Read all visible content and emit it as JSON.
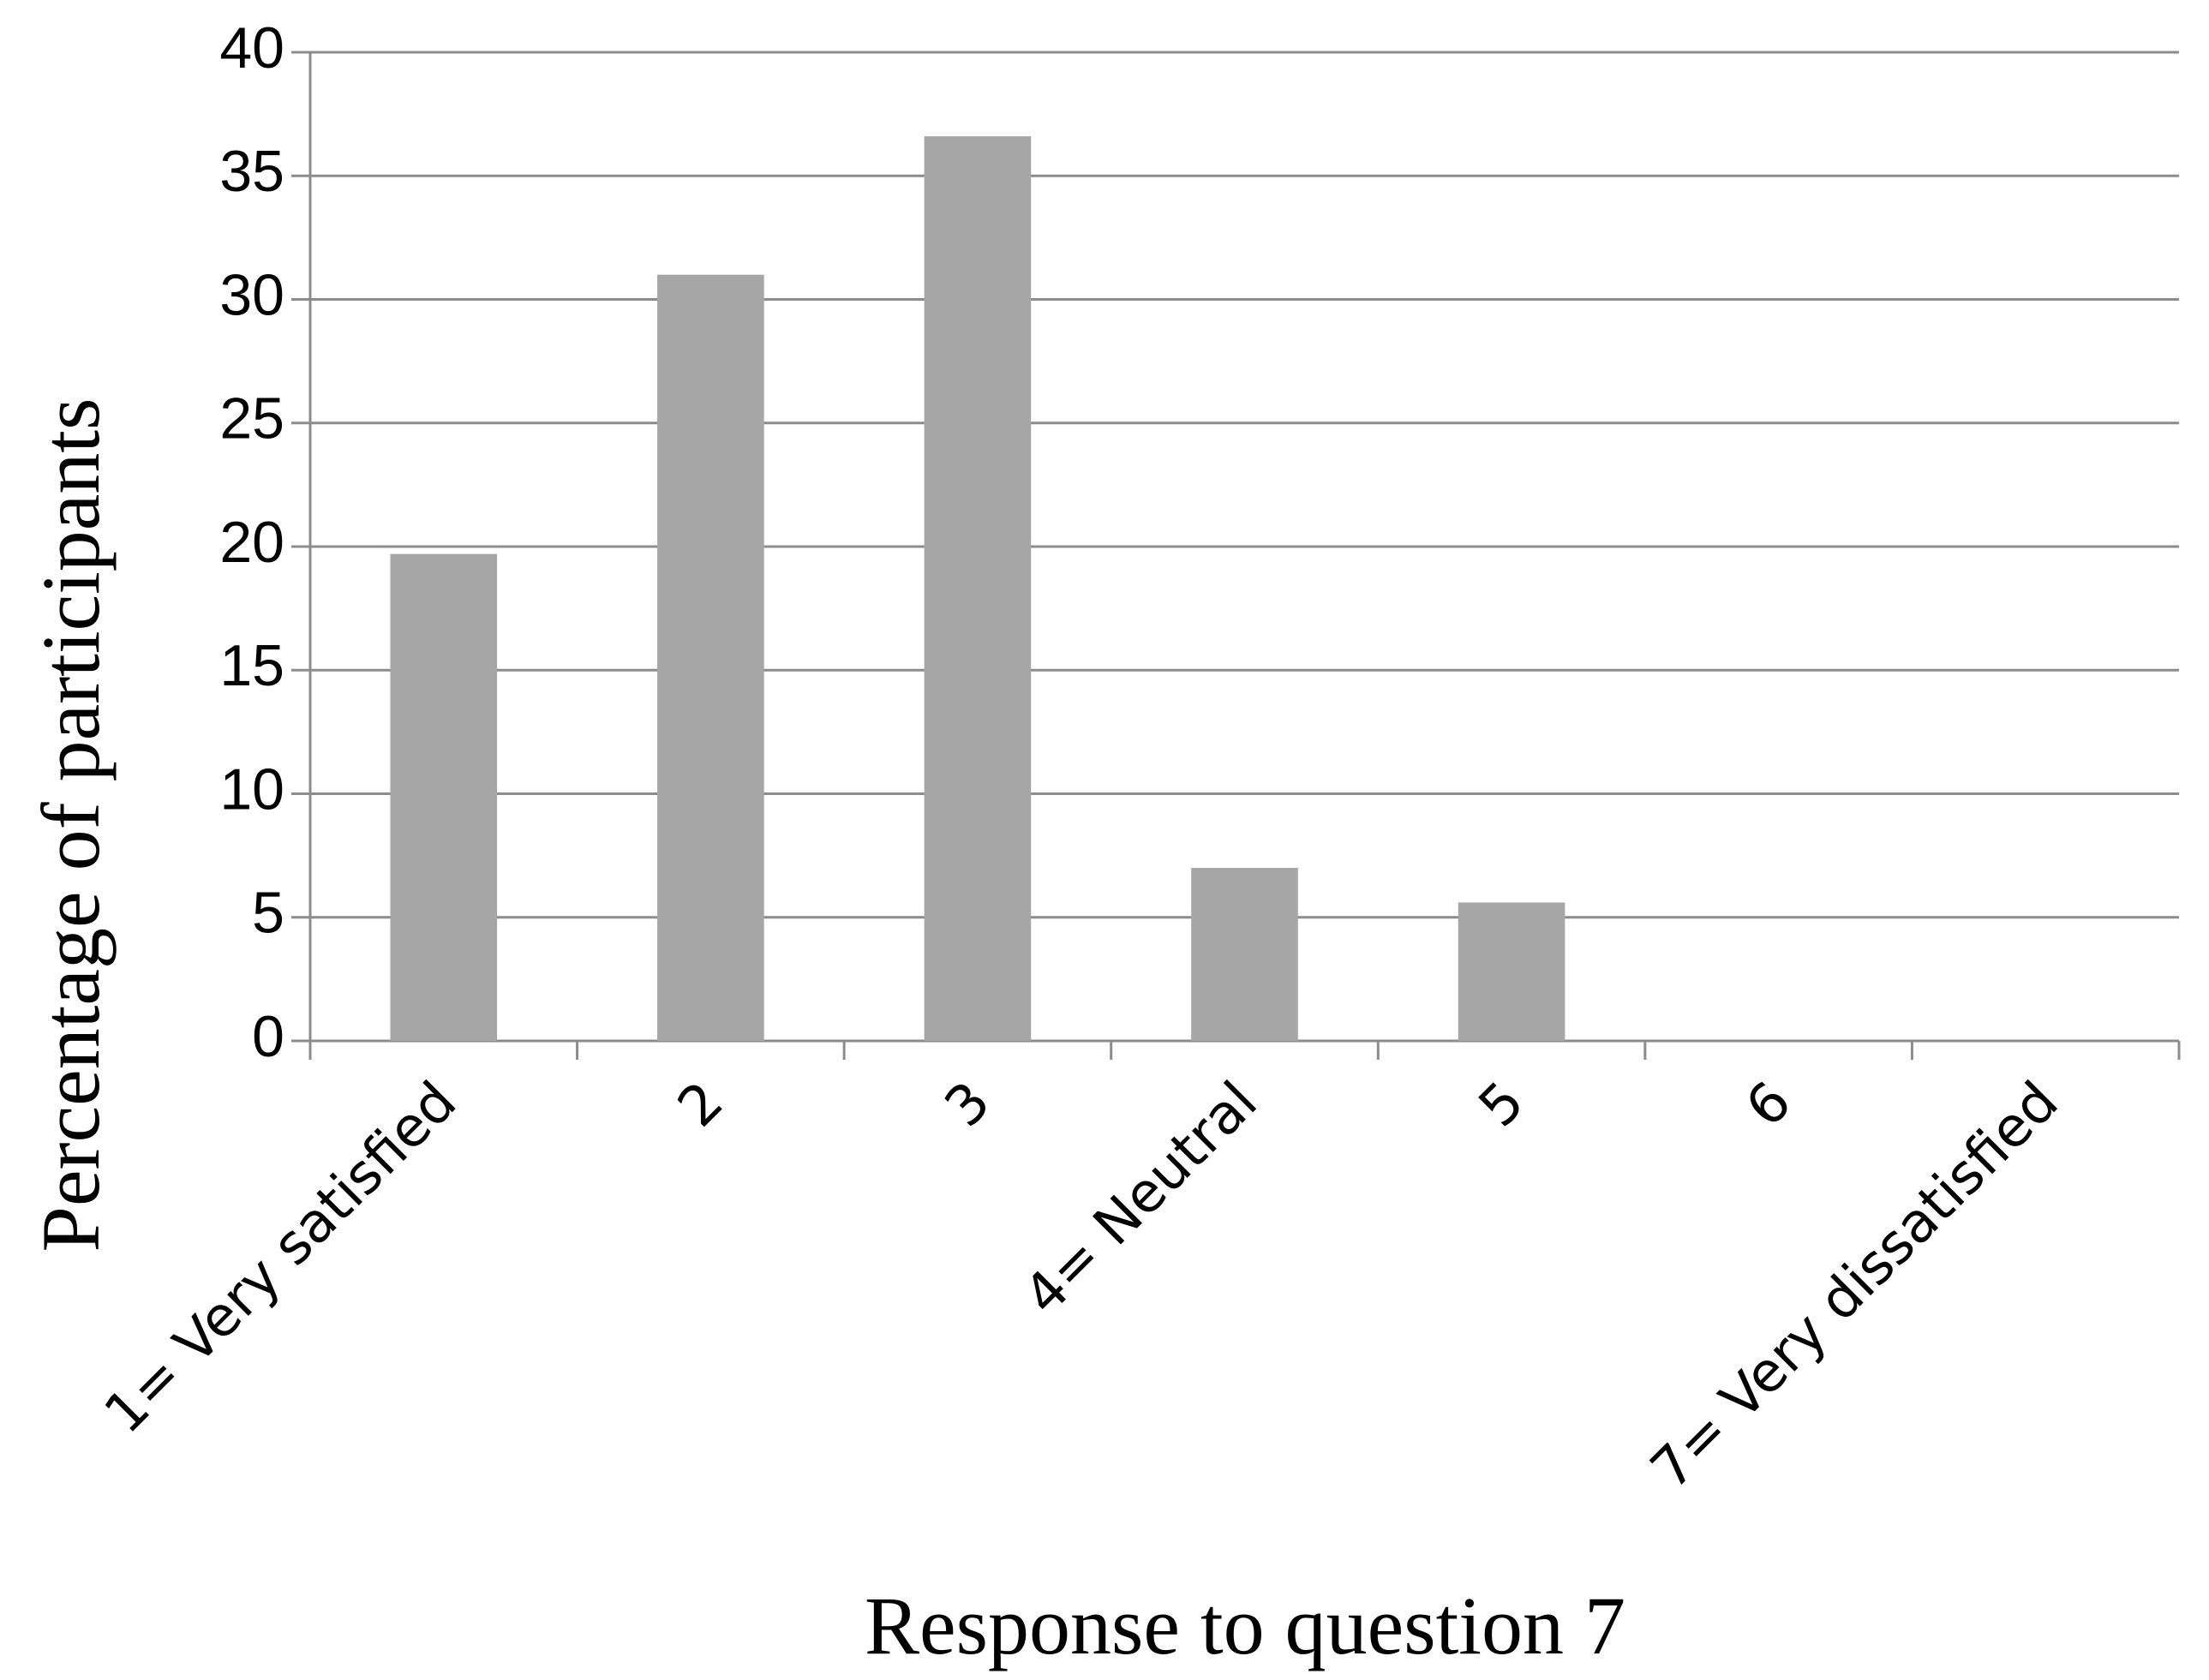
{
  "chart_data": {
    "type": "bar",
    "categories": [
      "1= Very satisfied",
      "2",
      "3",
      "4= Neutral",
      "5",
      "6",
      "7= Very dissatisfied"
    ],
    "values": [
      19.7,
      31,
      36.6,
      7,
      5.6,
      0,
      0
    ],
    "color": "#a6a6a6",
    "xlabel": "Response to question 7",
    "ylabel": "Percentage  of participants",
    "ylim": [
      0,
      40
    ],
    "yticks": [
      0,
      5,
      10,
      15,
      20,
      25,
      30,
      35,
      40
    ],
    "grid": true
  }
}
